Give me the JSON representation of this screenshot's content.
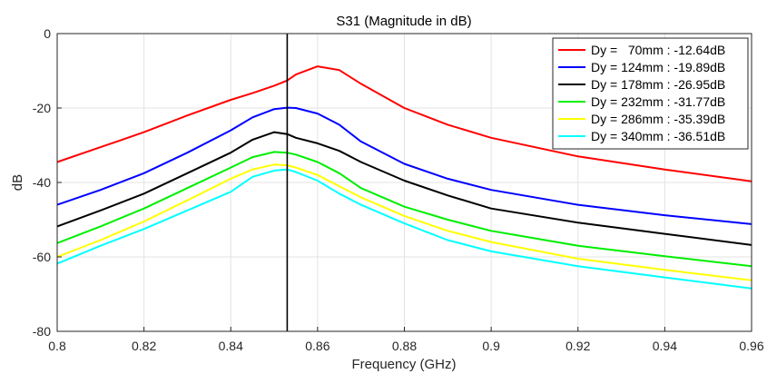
{
  "chart_data": {
    "type": "line",
    "title": "S31 (Magnitude in dB)",
    "xlabel": "Frequency (GHz)",
    "ylabel": "dB",
    "xlim": [
      0.8,
      0.96
    ],
    "ylim": [
      -80,
      0
    ],
    "xticks": [
      "0.8",
      "0.82",
      "0.84",
      "0.86",
      "0.88",
      "0.9",
      "0.92",
      "0.94",
      "0.96"
    ],
    "yticks": [
      "-80",
      "-60",
      "-40",
      "-20",
      "0"
    ],
    "grid": true,
    "legend_position": "top-right",
    "marker_line_x": 0.853,
    "x": [
      0.8,
      0.81,
      0.82,
      0.83,
      0.84,
      0.845,
      0.85,
      0.853,
      0.855,
      0.86,
      0.865,
      0.87,
      0.88,
      0.89,
      0.9,
      0.92,
      0.94,
      0.96
    ],
    "series": [
      {
        "name": "Dy =   70mm : -12.64dB",
        "color": "#ff0000",
        "values": [
          -34.5,
          -30.5,
          -26.5,
          -22.0,
          -17.8,
          -16.0,
          -14.0,
          -12.6,
          -11.0,
          -8.8,
          -9.8,
          -13.5,
          -20.0,
          -24.5,
          -28.0,
          -33.0,
          -36.5,
          -39.7
        ]
      },
      {
        "name": "Dy = 124mm : -19.89dB",
        "color": "#0000ff",
        "values": [
          -46.0,
          -42.0,
          -37.5,
          -32.0,
          -26.0,
          -22.5,
          -20.3,
          -19.9,
          -20.0,
          -21.5,
          -24.5,
          -29.0,
          -35.0,
          -39.0,
          -42.0,
          -46.0,
          -48.8,
          -51.2
        ]
      },
      {
        "name": "Dy = 178mm : -26.95dB",
        "color": "#000000",
        "values": [
          -51.8,
          -47.5,
          -43.0,
          -37.5,
          -32.0,
          -28.5,
          -26.5,
          -27.0,
          -28.0,
          -29.5,
          -31.5,
          -34.5,
          -39.5,
          -43.5,
          -47.0,
          -50.8,
          -53.8,
          -56.8
        ]
      },
      {
        "name": "Dy = 232mm : -31.77dB",
        "color": "#00ee00",
        "values": [
          -56.3,
          -51.8,
          -47.0,
          -41.5,
          -36.0,
          -33.2,
          -31.8,
          -32.0,
          -32.5,
          -34.5,
          -37.5,
          -41.5,
          -46.5,
          -50.0,
          -53.0,
          -57.0,
          -59.8,
          -62.5
        ]
      },
      {
        "name": "Dy = 286mm : -35.39dB",
        "color": "#ffff00",
        "values": [
          -60.0,
          -55.5,
          -50.5,
          -44.8,
          -39.0,
          -36.5,
          -35.2,
          -35.4,
          -36.0,
          -38.0,
          -41.0,
          -44.0,
          -49.0,
          -53.0,
          -56.0,
          -60.5,
          -63.5,
          -66.3
        ]
      },
      {
        "name": "Dy = 340mm : -36.51dB",
        "color": "#00ffff",
        "values": [
          -61.8,
          -57.0,
          -52.5,
          -47.5,
          -42.5,
          -38.5,
          -36.8,
          -36.5,
          -37.2,
          -39.5,
          -43.0,
          -46.0,
          -51.0,
          -55.5,
          -58.5,
          -62.5,
          -65.5,
          -68.5
        ]
      }
    ]
  }
}
